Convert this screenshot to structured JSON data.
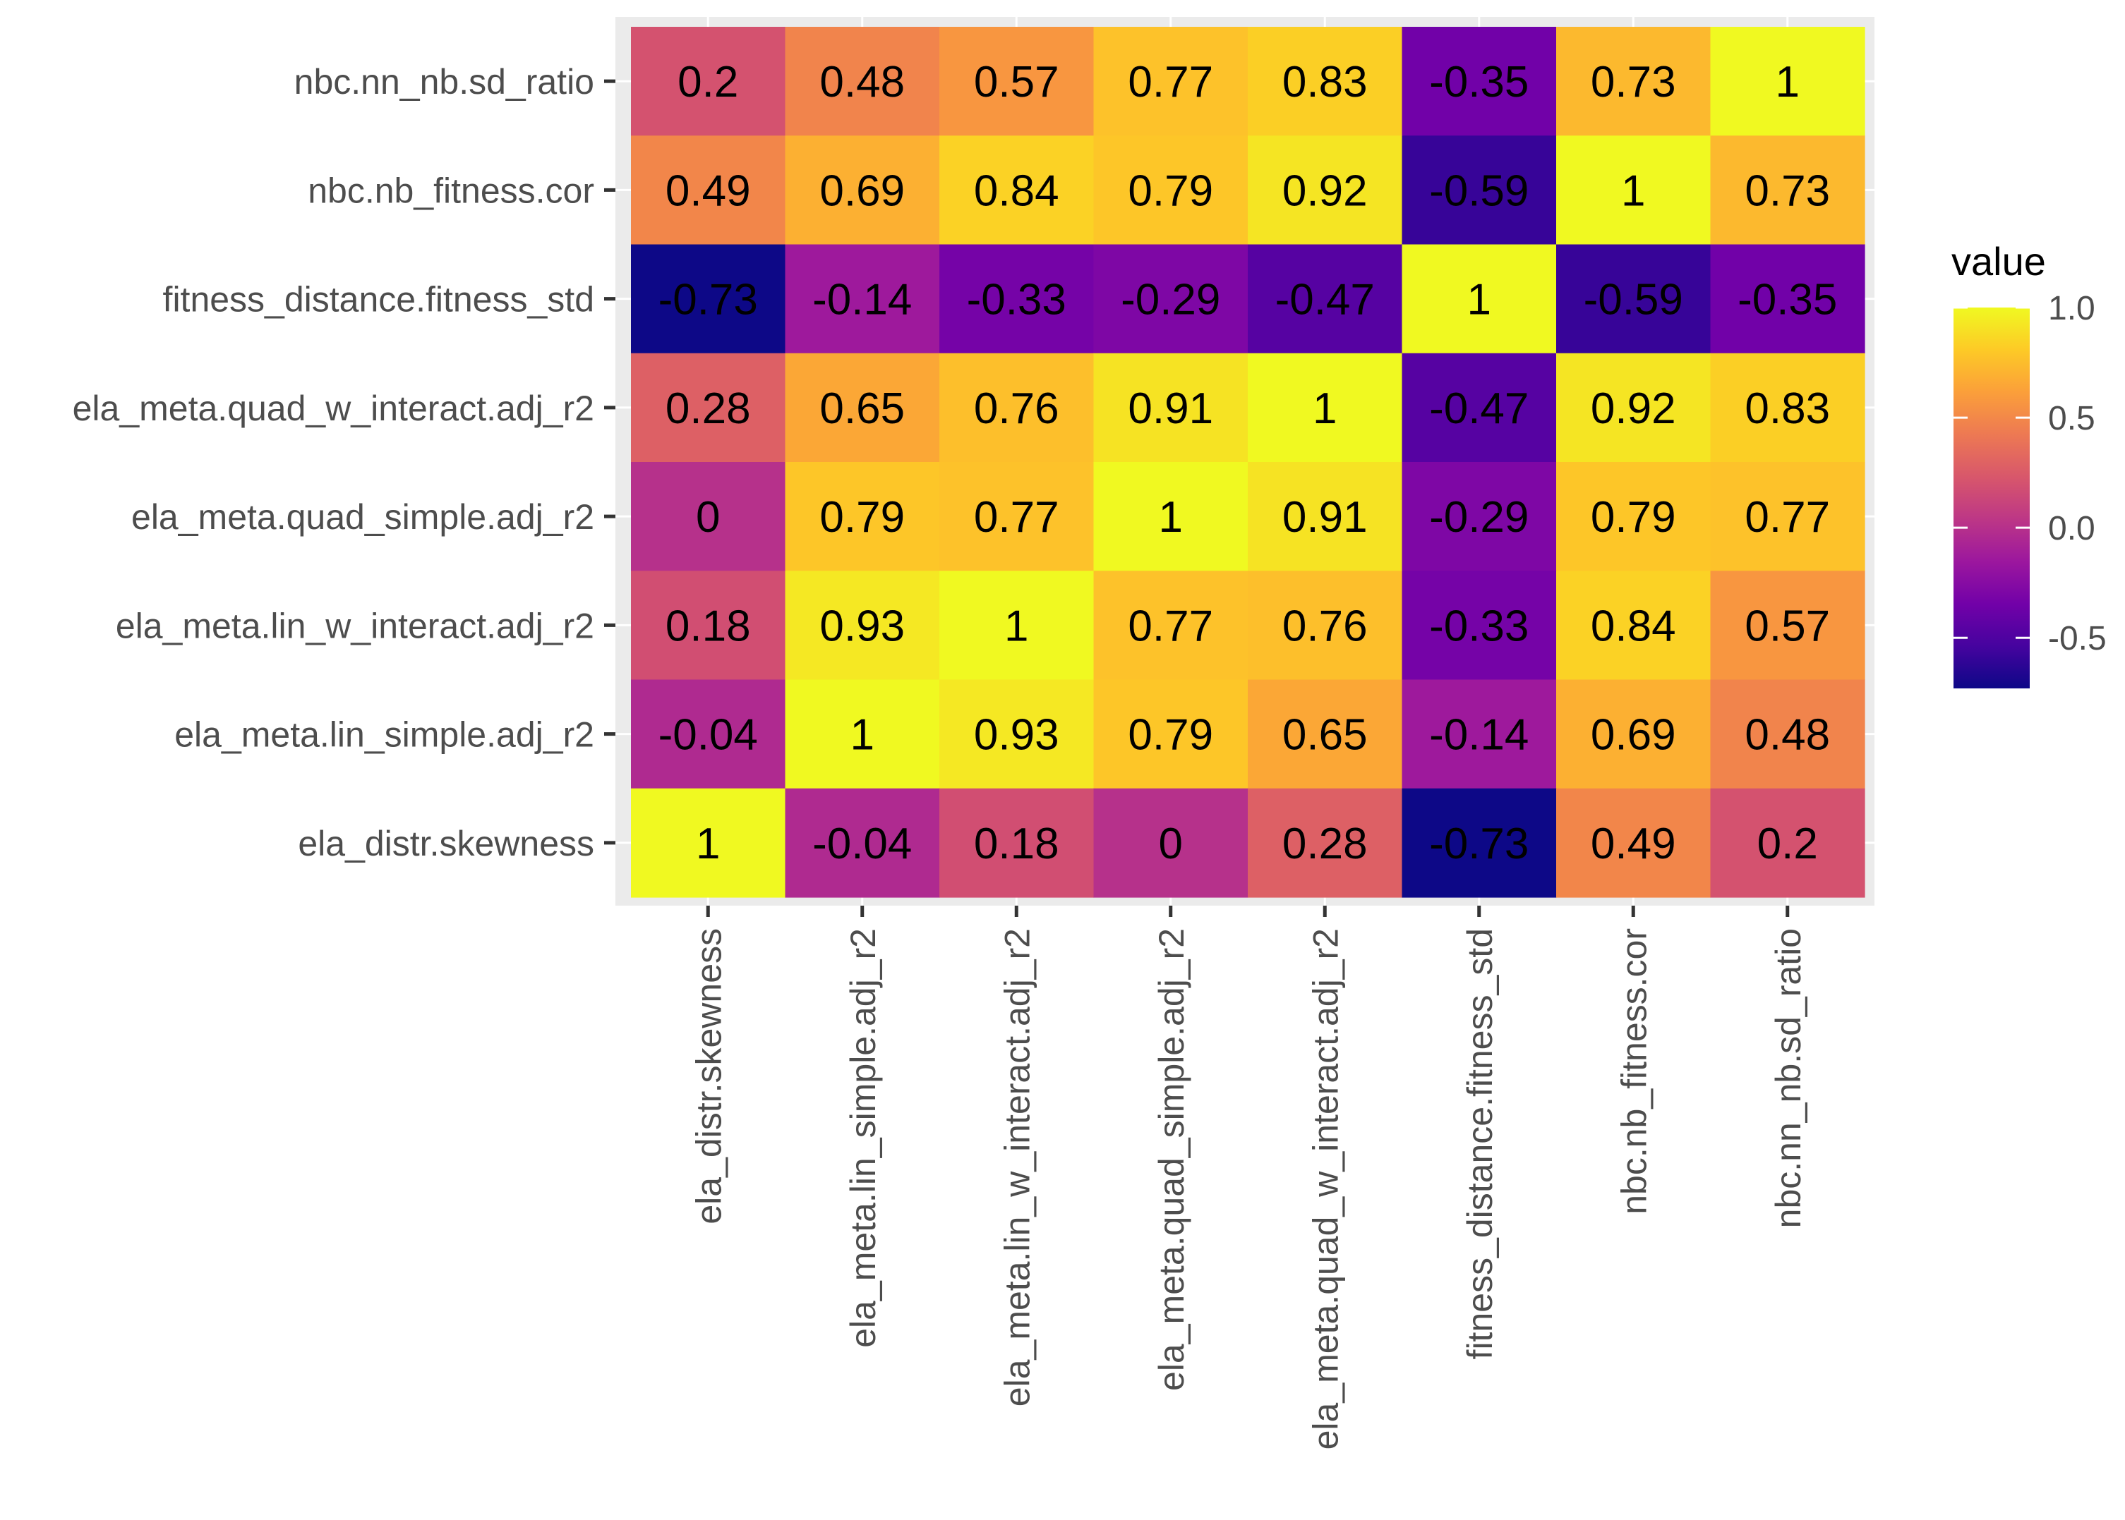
{
  "chart_data": {
    "type": "heatmap",
    "title": "",
    "xlabel": "",
    "ylabel": "",
    "x_categories": [
      "ela_distr.skewness",
      "ela_meta.lin_simple.adj_r2",
      "ela_meta.lin_w_interact.adj_r2",
      "ela_meta.quad_simple.adj_r2",
      "ela_meta.quad_w_interact.adj_r2",
      "fitness_distance.fitness_std",
      "nbc.nb_fitness.cor",
      "nbc.nn_nb.sd_ratio"
    ],
    "y_categories": [
      "nbc.nn_nb.sd_ratio",
      "nbc.nb_fitness.cor",
      "fitness_distance.fitness_std",
      "ela_meta.quad_w_interact.adj_r2",
      "ela_meta.quad_simple.adj_r2",
      "ela_meta.lin_w_interact.adj_r2",
      "ela_meta.lin_simple.adj_r2",
      "ela_distr.skewness"
    ],
    "values": [
      [
        0.2,
        0.48,
        0.57,
        0.77,
        0.83,
        -0.35,
        0.73,
        1
      ],
      [
        0.49,
        0.69,
        0.84,
        0.79,
        0.92,
        -0.59,
        1,
        0.73
      ],
      [
        -0.73,
        -0.14,
        -0.33,
        -0.29,
        -0.47,
        1,
        -0.59,
        -0.35
      ],
      [
        0.28,
        0.65,
        0.76,
        0.91,
        1,
        -0.47,
        0.92,
        0.83
      ],
      [
        0,
        0.79,
        0.77,
        1,
        0.91,
        -0.29,
        0.79,
        0.77
      ],
      [
        0.18,
        0.93,
        1,
        0.77,
        0.76,
        -0.33,
        0.84,
        0.57
      ],
      [
        -0.04,
        1,
        0.93,
        0.79,
        0.65,
        -0.14,
        0.69,
        0.48
      ],
      [
        1,
        -0.04,
        0.18,
        0,
        0.28,
        -0.73,
        0.49,
        0.2
      ]
    ],
    "legend": {
      "title": "value",
      "ticks": [
        1.0,
        0.5,
        0.0,
        -0.5
      ],
      "tick_labels": [
        "1.0",
        "0.5",
        "0.0",
        "-0.5"
      ],
      "range": [
        -0.73,
        1
      ],
      "placement": "right"
    },
    "colormap": {
      "name": "plasma",
      "stops": [
        "#0d0887",
        "#46039f",
        "#7201a8",
        "#9c179e",
        "#bd3786",
        "#d8576b",
        "#ed7953",
        "#fb9f3a",
        "#fdca26",
        "#f0f921"
      ]
    },
    "grid": true
  }
}
